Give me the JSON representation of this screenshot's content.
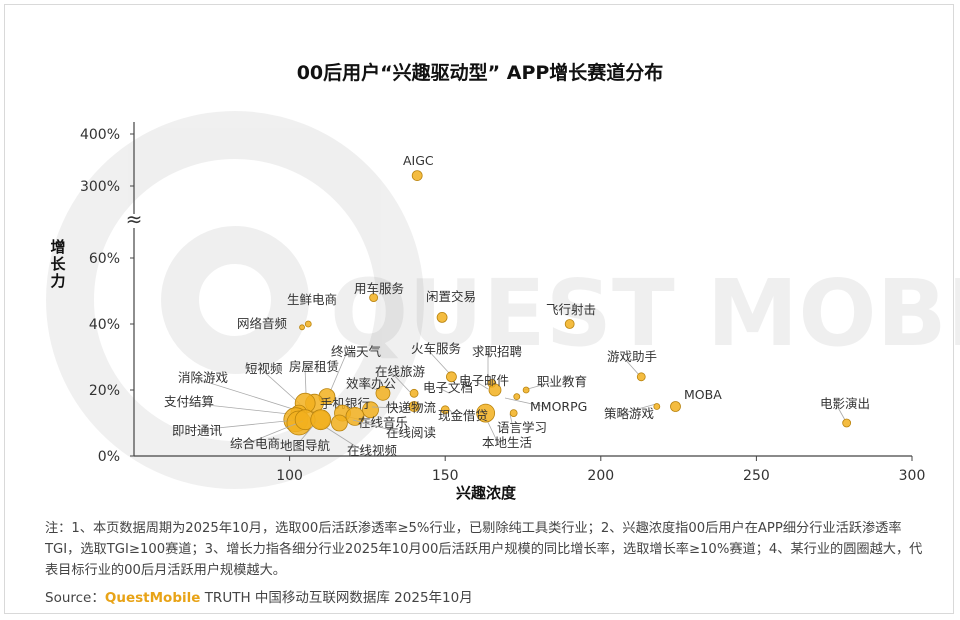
{
  "title": "00后用户“兴趣驱动型” APP增长赛道分布",
  "chart_data": {
    "type": "scatter",
    "xlabel": "兴趣浓度",
    "ylabel": "增长力",
    "xlim": [
      50,
      300
    ],
    "x_ticks": [
      "100",
      "150",
      "200",
      "250",
      "300"
    ],
    "y_ticks": [
      "0%",
      "20%",
      "40%",
      "60%",
      "300%",
      "400%"
    ],
    "y_axis_break": "≈",
    "watermark": "QUEST MOBILE",
    "bubble_color": "#f2b01e",
    "points": [
      {
        "label": "AIGC",
        "x": 141,
        "y": 320
      },
      {
        "label": "用车服务",
        "x": 127,
        "y": 48
      },
      {
        "label": "闲置交易",
        "x": 149,
        "y": 42
      },
      {
        "label": "飞行射击",
        "x": 190,
        "y": 40
      },
      {
        "label": "生鲜电商",
        "x": 106,
        "y": 40
      },
      {
        "label": "网络音频",
        "x": 104,
        "y": 39
      },
      {
        "label": "游戏助手",
        "x": 213,
        "y": 24
      },
      {
        "label": "职业教育",
        "x": 176,
        "y": 20
      },
      {
        "label": "MOBA",
        "x": 224,
        "y": 15
      },
      {
        "label": "MMORPG",
        "x": 173,
        "y": 18
      },
      {
        "label": "策略游戏",
        "x": 218,
        "y": 15
      },
      {
        "label": "电影演出",
        "x": 279,
        "y": 10
      },
      {
        "label": "火车服务",
        "x": 152,
        "y": 24
      },
      {
        "label": "求职招聘",
        "x": 165,
        "y": 22
      },
      {
        "label": "电子邮件",
        "x": 166,
        "y": 20
      },
      {
        "label": "电子文档",
        "x": 140,
        "y": 19
      },
      {
        "label": "语言学习",
        "x": 172,
        "y": 13
      },
      {
        "label": "本地生活",
        "x": 163,
        "y": 13
      },
      {
        "label": "现金借贷",
        "x": 150,
        "y": 14
      },
      {
        "label": "在线旅游",
        "x": 140,
        "y": 15
      },
      {
        "label": "效率办公",
        "x": 130,
        "y": 19
      },
      {
        "label": "终端天气",
        "x": 112,
        "y": 18
      },
      {
        "label": "房屋租赁",
        "x": 108,
        "y": 16
      },
      {
        "label": "短视频",
        "x": 105,
        "y": 16
      },
      {
        "label": "消除游戏",
        "x": 103,
        "y": 13
      },
      {
        "label": "手机银行",
        "x": 126,
        "y": 14
      },
      {
        "label": "快递物流",
        "x": 117,
        "y": 13
      },
      {
        "label": "在线音乐",
        "x": 121,
        "y": 12
      },
      {
        "label": "在线阅读",
        "x": 116,
        "y": 10
      },
      {
        "label": "在线视频",
        "x": 110,
        "y": 11
      },
      {
        "label": "支付结算",
        "x": 102,
        "y": 11
      },
      {
        "label": "即时通讯",
        "x": 103,
        "y": 10
      },
      {
        "label": "综合电商",
        "x": 105,
        "y": 11
      },
      {
        "label": "地图导航",
        "x": 110,
        "y": 11
      }
    ]
  },
  "footer": {
    "notes": "注：1、本页数据周期为2025年10月，选取00后活跃渗透率≥5%行业，已剔除纯工具类行业；2、兴趣浓度指00后用户在APP细分行业活跃渗透率TGI，选取TGI≥100赛道；3、增长力指各细分行业2025年10月00后活跃用户规模的同比增长率，选取增长率≥10%赛道；4、某行业的圆圈越大，代表目标行业的00后月活跃用户规模越大。",
    "source_label": "Source：",
    "source_brand": "QuestMobile",
    "source_text": "TRUTH 中国移动互联网数据库 2025年10月"
  }
}
